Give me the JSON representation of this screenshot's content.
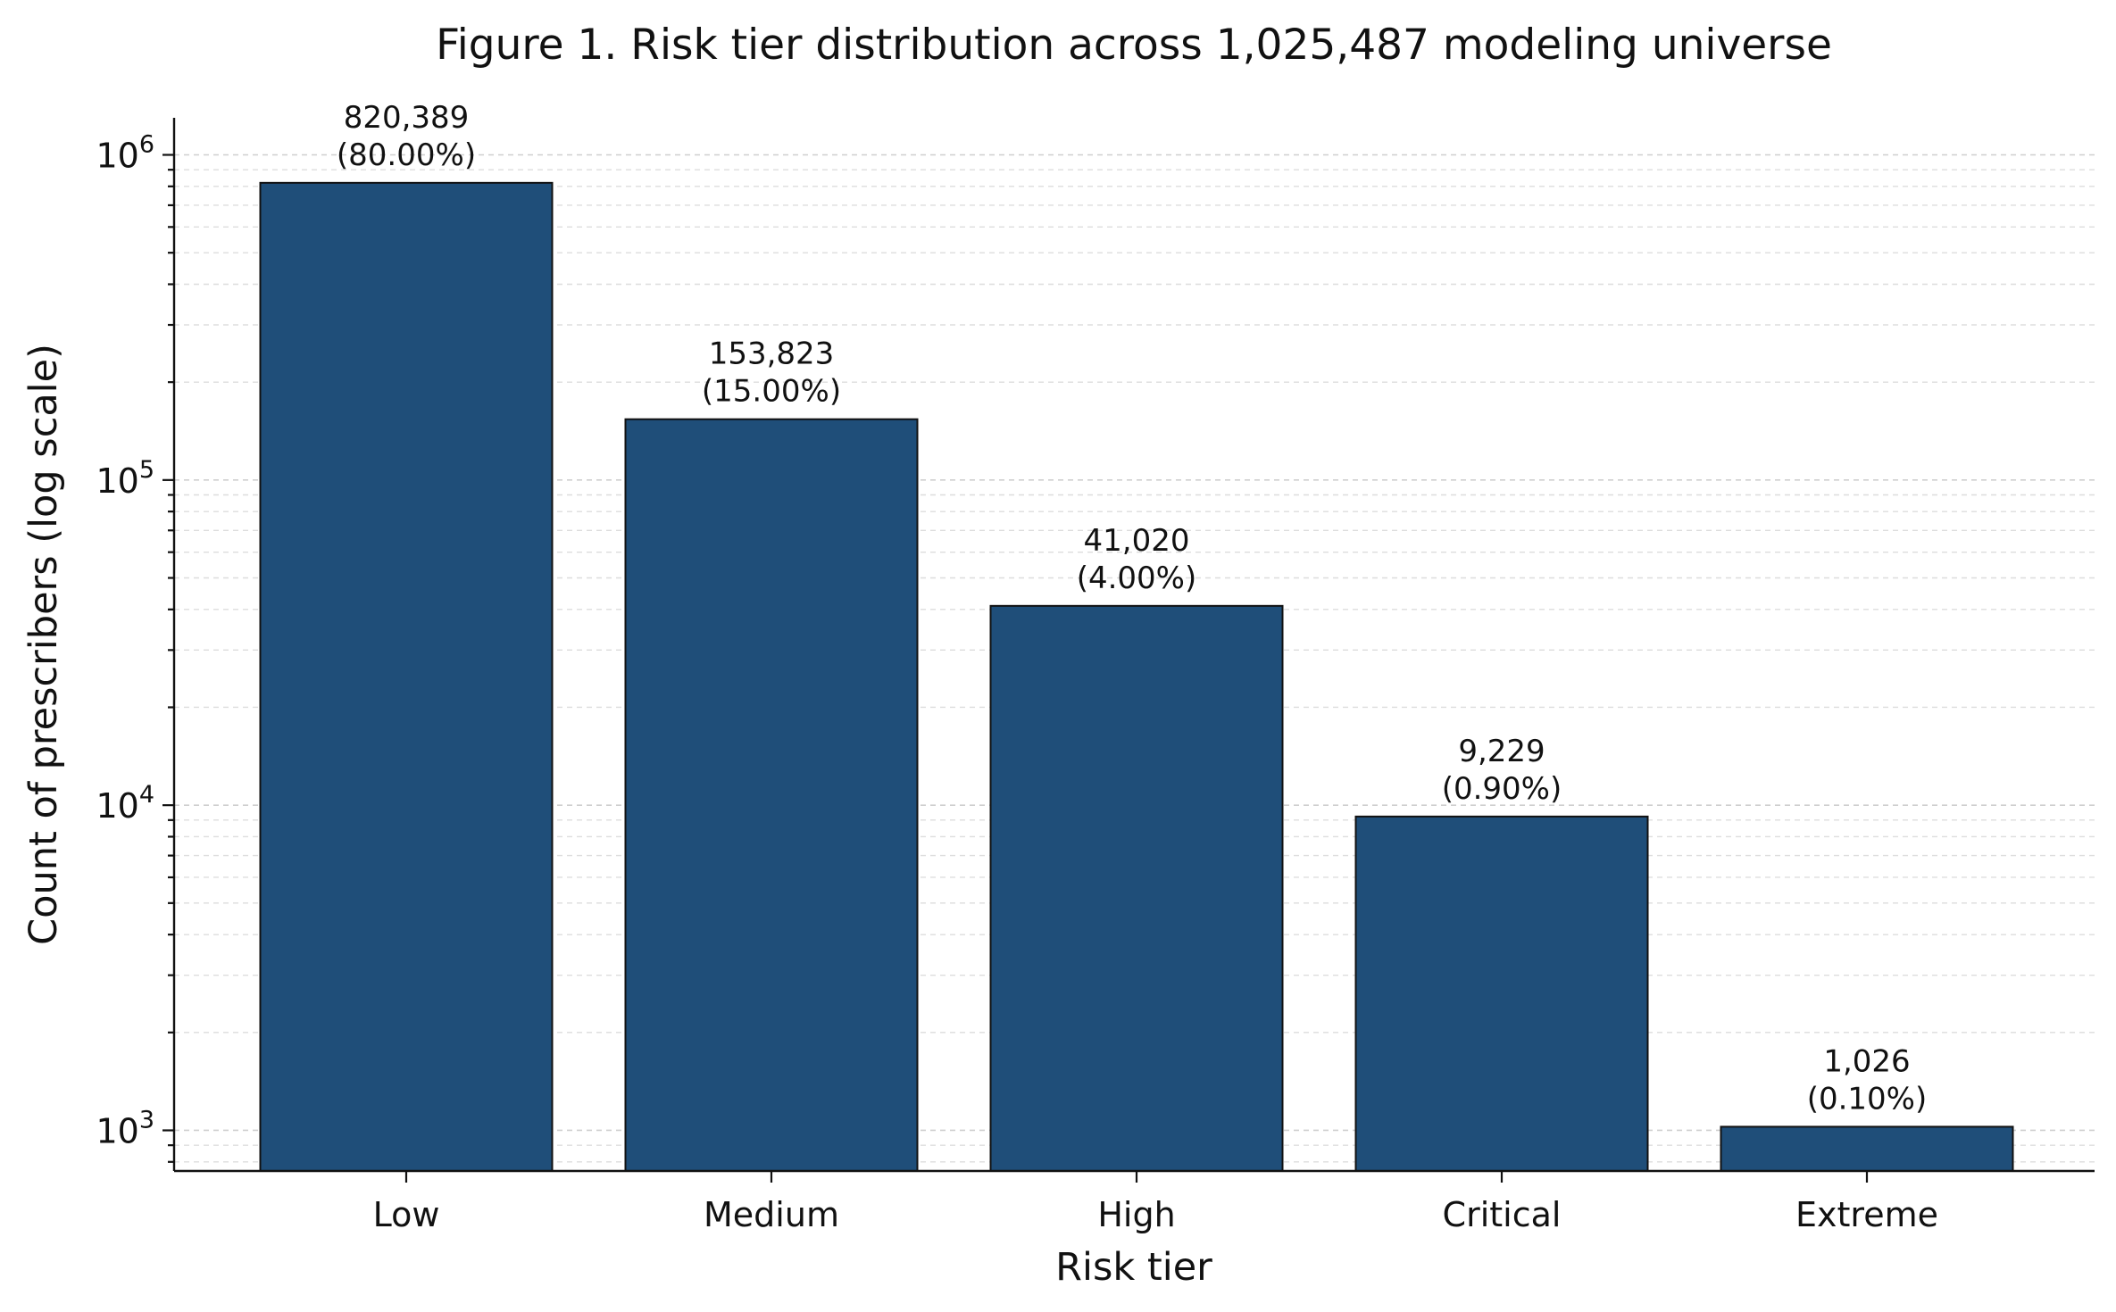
{
  "chart_data": {
    "type": "bar",
    "title": "Figure 1. Risk tier distribution across 1,025,487 modeling universe",
    "xlabel": "Risk tier",
    "ylabel": "Count of prescribers (log scale)",
    "yscale": "log",
    "ylim": [
      750,
      1300000
    ],
    "y_ticks": [
      1000,
      10000,
      100000,
      1000000
    ],
    "y_tick_labels": [
      {
        "base": "10",
        "exp": "3"
      },
      {
        "base": "10",
        "exp": "4"
      },
      {
        "base": "10",
        "exp": "5"
      },
      {
        "base": "10",
        "exp": "6"
      }
    ],
    "categories": [
      "Low",
      "Medium",
      "High",
      "Critical",
      "Extreme"
    ],
    "values": [
      820389,
      153823,
      41020,
      9229,
      1026
    ],
    "value_labels": [
      "820,389",
      "153,823",
      "41,020",
      "9,229",
      "1,026"
    ],
    "percent_labels": [
      "(80.00%)",
      "(15.00%)",
      "(4.00%)",
      "(0.90%)",
      "(0.10%)"
    ],
    "bar_color": "#1f4e79",
    "grid": "horizontal, major and minor, dashed",
    "legend": "none"
  }
}
